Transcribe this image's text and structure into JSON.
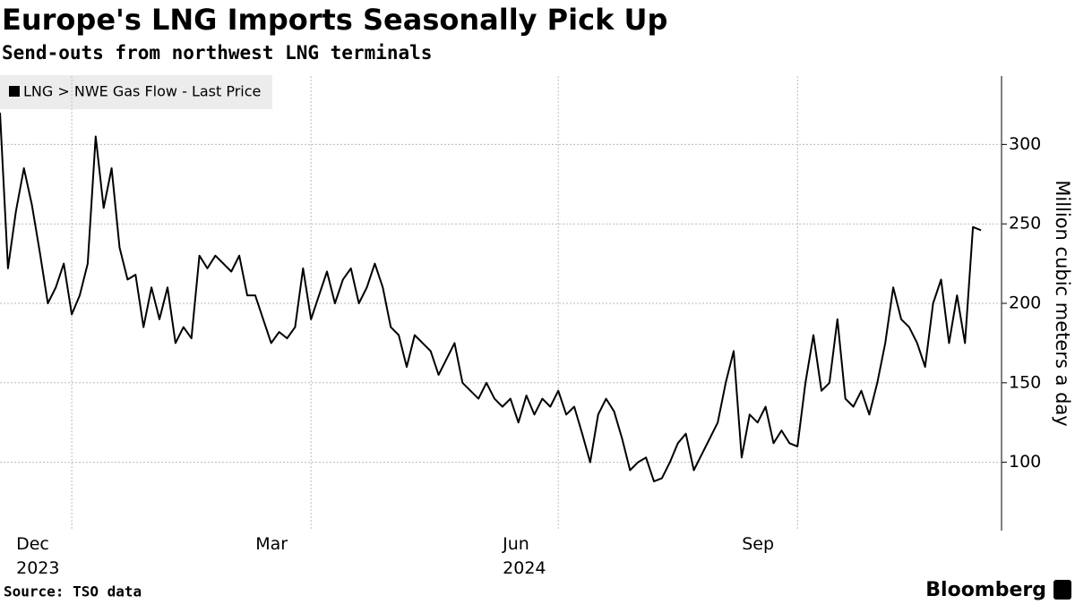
{
  "chart_data": {
    "type": "line",
    "title": "Europe's LNG Imports Seasonally Pick Up",
    "subtitle": "Send-outs from northwest LNG terminals",
    "y_axis_label": "Million cubic meters a day",
    "source": "Source: TSO data",
    "brand": "Bloomberg",
    "categories": [
      null,
      null,
      null,
      null,
      null,
      null,
      null,
      null,
      null,
      "Dec\n2023",
      null,
      null,
      null,
      null,
      null,
      null,
      null,
      null,
      null,
      null,
      null,
      null,
      null,
      null,
      null,
      null,
      null,
      null,
      null,
      null,
      null,
      null,
      null,
      null,
      null,
      null,
      null,
      null,
      null,
      "Mar",
      null,
      null,
      null,
      null,
      null,
      null,
      null,
      null,
      null,
      null,
      null,
      null,
      null,
      null,
      null,
      null,
      null,
      null,
      null,
      null,
      null,
      null,
      null,
      null,
      null,
      null,
      null,
      null,
      null,
      null,
      "Jun\n2024",
      null,
      null,
      null,
      null,
      null,
      null,
      null,
      null,
      null,
      null,
      null,
      null,
      null,
      null,
      null,
      null,
      null,
      null,
      null,
      null,
      null,
      null,
      null,
      null,
      null,
      null,
      null,
      null,
      null,
      "Sep",
      null,
      null,
      null,
      null,
      null,
      null,
      null,
      null,
      null,
      null,
      null,
      null,
      null,
      null,
      null,
      null,
      null,
      null,
      null,
      null,
      null,
      null,
      null
    ],
    "series": [
      {
        "name": "LNG > NWE Gas Flow - Last Price",
        "color": "#000000",
        "values": [
          320,
          222,
          258,
          285,
          262,
          232,
          200,
          210,
          225,
          193,
          205,
          225,
          305,
          260,
          285,
          235,
          215,
          218,
          185,
          210,
          190,
          210,
          175,
          185,
          178,
          230,
          222,
          230,
          225,
          220,
          230,
          205,
          205,
          190,
          175,
          182,
          178,
          185,
          222,
          190,
          205,
          220,
          200,
          215,
          222,
          200,
          210,
          225,
          210,
          185,
          180,
          160,
          180,
          175,
          170,
          155,
          165,
          175,
          150,
          145,
          140,
          150,
          140,
          135,
          140,
          125,
          142,
          130,
          140,
          135,
          145,
          130,
          135,
          118,
          100,
          130,
          140,
          132,
          115,
          95,
          100,
          103,
          88,
          90,
          100,
          112,
          118,
          95,
          105,
          115,
          125,
          150,
          170,
          103,
          130,
          125,
          135,
          112,
          120,
          112,
          110,
          150,
          180,
          145,
          150,
          190,
          140,
          135,
          145,
          130,
          150,
          175,
          210,
          190,
          185,
          175,
          160,
          200,
          215,
          175,
          205,
          175,
          248,
          246
        ]
      }
    ],
    "ylim": [
      57,
      343
    ],
    "yticks": [
      100,
      150,
      200,
      250,
      300
    ],
    "grid": true,
    "y_axis_side": "right"
  }
}
